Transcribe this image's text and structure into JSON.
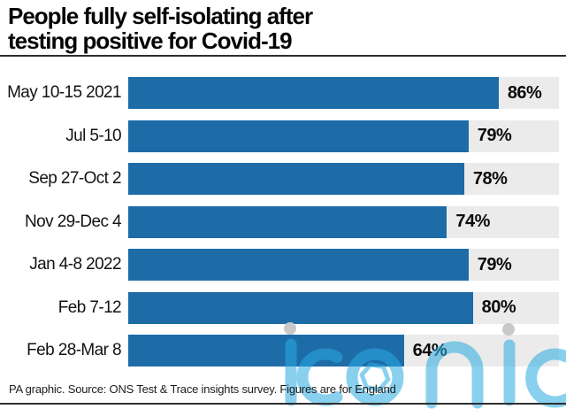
{
  "header": {
    "title_lines": [
      "People fully self-isolating after",
      "testing positive for Covid-19"
    ]
  },
  "chart_data": {
    "type": "bar",
    "orientation": "horizontal",
    "title": "People fully self-isolating after testing positive for Covid-19",
    "categories": [
      "May 10-15 2021",
      "Jul 5-10",
      "Sep 27-Oct 2",
      "Nov 29-Dec 4",
      "Jan 4-8 2022",
      "Feb 7-12",
      "Feb 28-Mar 8"
    ],
    "values": [
      86,
      79,
      78,
      74,
      79,
      80,
      64
    ],
    "value_labels": [
      "86%",
      "79%",
      "78%",
      "74%",
      "79%",
      "80%",
      "64%"
    ],
    "xlabel": "",
    "ylabel": "",
    "xlim": [
      0,
      100
    ],
    "unit": "%",
    "grid": false,
    "legend": "none"
  },
  "footer": {
    "source_text": "PA graphic. Source: ONS Test & Trace insights survey. Figures are for England"
  },
  "watermark": {
    "text": "iconic"
  },
  "colors": {
    "bar": "#1d6ca8",
    "track": "#ebebeb",
    "rule": "#2e2e2e",
    "watermark_blue": "#29abe2",
    "watermark_dot": "#c9c9c9",
    "title_text": "#050505"
  }
}
